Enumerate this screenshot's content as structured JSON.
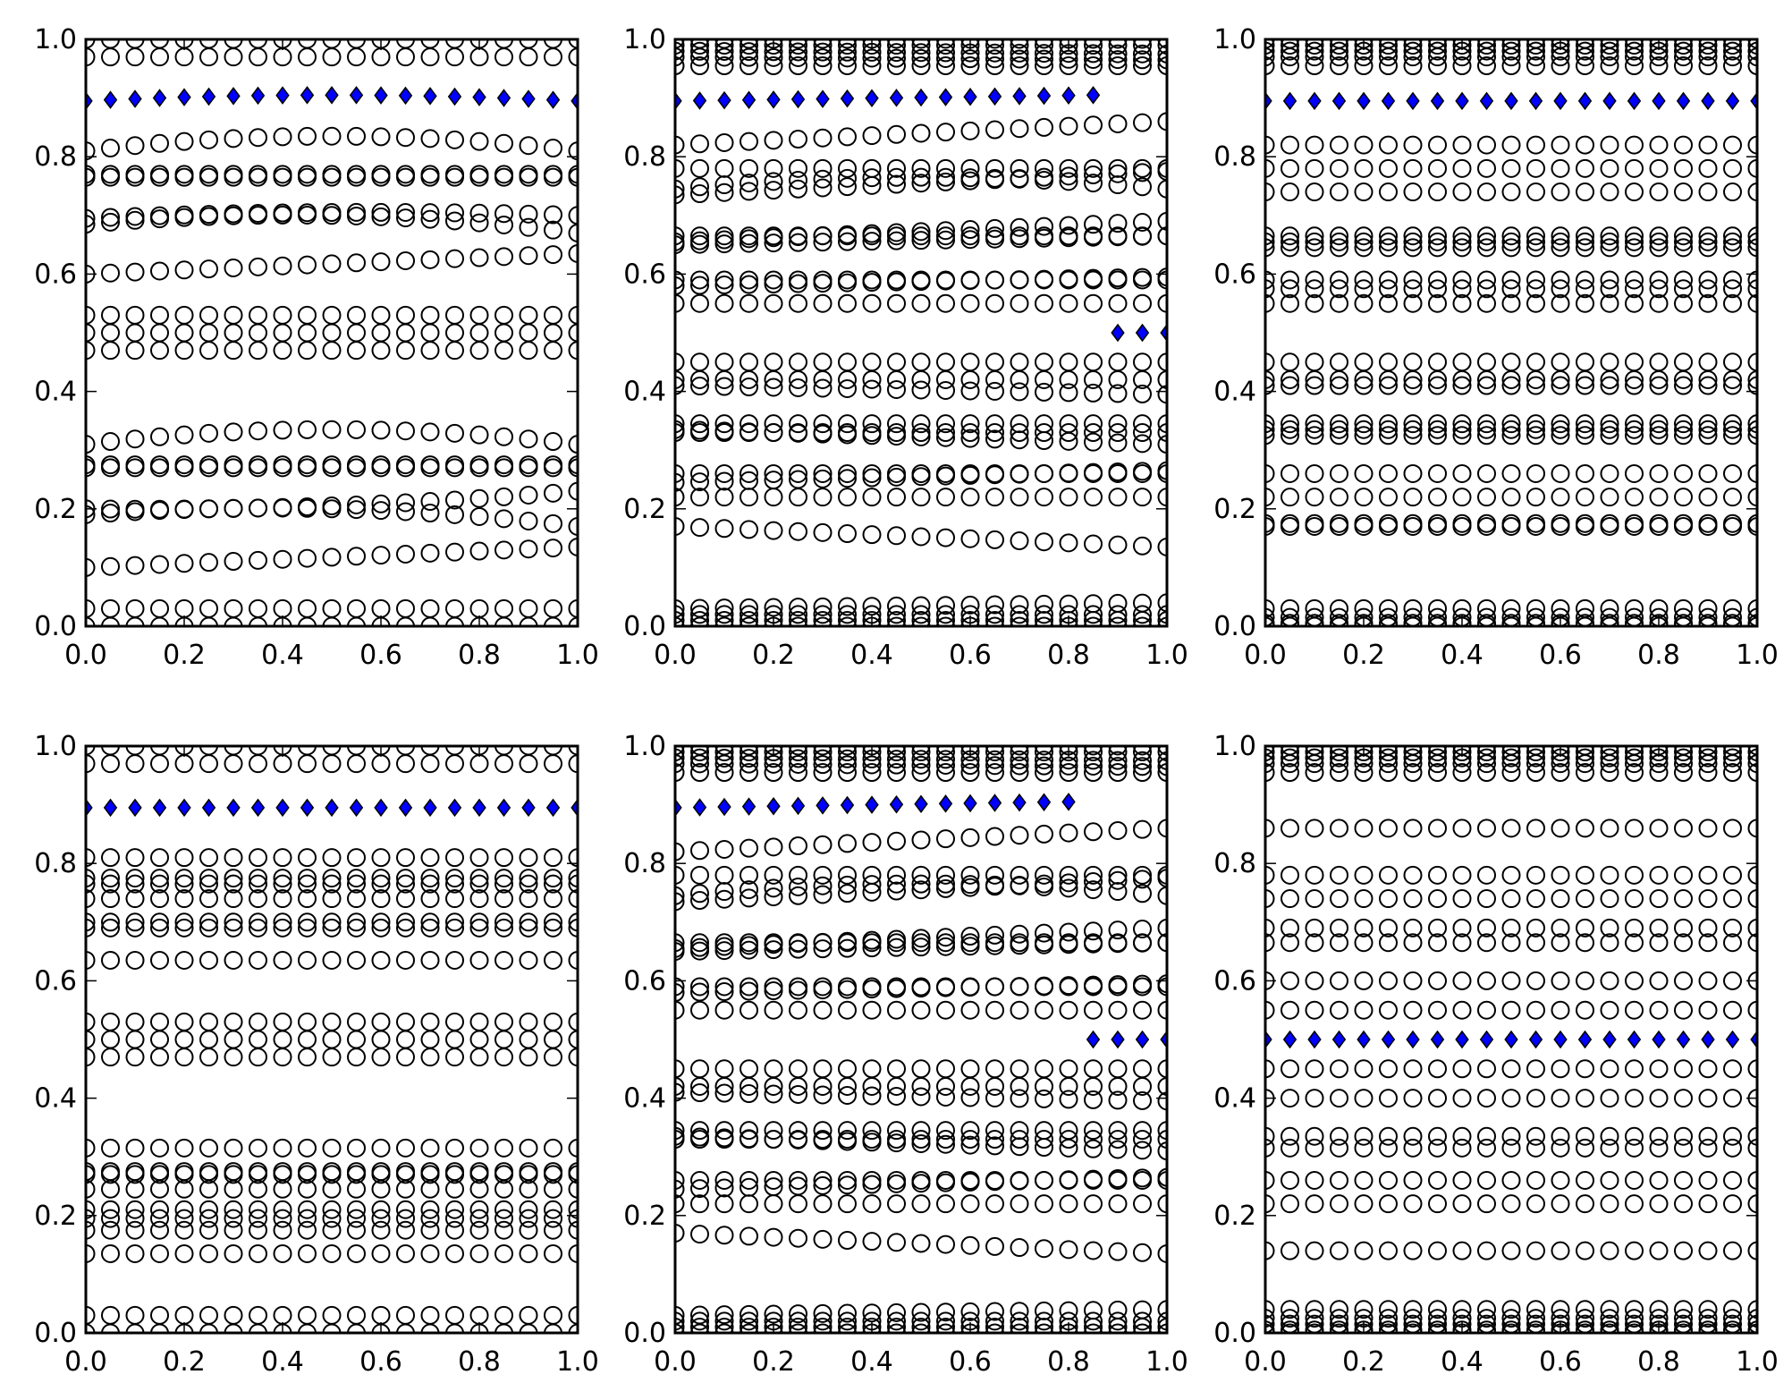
{
  "figure": {
    "axis_color": "#000000",
    "open_marker_color": "#000000",
    "highlight_color": "#0000ff"
  },
  "chart_data": [
    {
      "type": "scatter",
      "panel": "top-left",
      "xlim": [
        0,
        1
      ],
      "ylim": [
        0,
        1
      ],
      "xticks": [
        "0.0",
        "0.2",
        "0.4",
        "0.6",
        "0.8",
        "1.0"
      ],
      "yticks": [
        "0.0",
        "0.2",
        "0.4",
        "0.6",
        "0.8",
        "1.0"
      ],
      "grid": false,
      "x": [
        0,
        0.05,
        0.1,
        0.15,
        0.2,
        0.25,
        0.3,
        0.35,
        0.4,
        0.45,
        0.5,
        0.55,
        0.6,
        0.65,
        0.7,
        0.75,
        0.8,
        0.85,
        0.9,
        0.95,
        1.0
      ],
      "open_levels": [
        {
          "y": 1.0
        },
        {
          "y": 0.97
        },
        {
          "y_start": 0.81,
          "y_peak": 0.835,
          "y_end": 0.81
        },
        {
          "y": 0.77
        },
        {
          "y": 0.765
        },
        {
          "y_start": 0.695,
          "y_peak": 0.705,
          "y_end": 0.7
        },
        {
          "y_start": 0.685,
          "y_peak": 0.7,
          "y_end": 0.67
        },
        {
          "y_start": 0.6,
          "y_end": 0.635
        },
        {
          "y": 0.53
        },
        {
          "y": 0.5
        },
        {
          "y": 0.47
        },
        {
          "y_start": 0.31,
          "y_peak": 0.335,
          "y_end": 0.31
        },
        {
          "y": 0.275
        },
        {
          "y": 0.27
        },
        {
          "y_start": 0.2,
          "y_peak": 0.205,
          "y_end": 0.23
        },
        {
          "y_start": 0.19,
          "y_peak": 0.2,
          "y_end": 0.17
        },
        {
          "y_start": 0.1,
          "y_end": 0.135
        },
        {
          "y": 0.03
        },
        {
          "y": 0.0
        }
      ],
      "highlight_levels": [
        {
          "x_start": 0.0,
          "x_end": 1.0,
          "y_start": 0.895,
          "y_peak": 0.905,
          "y_end": 0.895
        }
      ]
    },
    {
      "type": "scatter",
      "panel": "top-center",
      "xlim": [
        0,
        1
      ],
      "ylim": [
        0,
        1
      ],
      "xticks": [
        "0.0",
        "0.2",
        "0.4",
        "0.6",
        "0.8",
        "1.0"
      ],
      "yticks": [
        "0.0",
        "0.2",
        "0.4",
        "0.6",
        "0.8",
        "1.0"
      ],
      "grid": false,
      "x": [
        0,
        0.05,
        0.1,
        0.15,
        0.2,
        0.25,
        0.3,
        0.35,
        0.4,
        0.45,
        0.5,
        0.55,
        0.6,
        0.65,
        0.7,
        0.75,
        0.8,
        0.85,
        0.9,
        0.95,
        1.0
      ],
      "open_levels": [
        {
          "y": 1.0
        },
        {
          "y": 0.99
        },
        {
          "y_start": 0.98,
          "y_end": 0.975
        },
        {
          "y_start": 0.97,
          "y_end": 0.965
        },
        {
          "y": 0.955
        },
        {
          "y_start": 0.82,
          "y_end": 0.86
        },
        {
          "y": 0.78
        },
        {
          "y_start": 0.745,
          "y_peak": 0.765,
          "y_end": 0.745
        },
        {
          "y_start": 0.735,
          "y_end": 0.775
        },
        {
          "y": 0.665
        },
        {
          "y_start": 0.655,
          "y_end": 0.69
        },
        {
          "y_start": 0.65,
          "y_end": 0.665
        },
        {
          "y": 0.59
        },
        {
          "y_start": 0.58,
          "y_end": 0.595
        },
        {
          "y": 0.55
        },
        {
          "y": 0.45
        },
        {
          "y": 0.42
        },
        {
          "y_start": 0.41,
          "y_end": 0.395
        },
        {
          "y": 0.345
        },
        {
          "y_start": 0.335,
          "y_end": 0.31
        },
        {
          "y_start": 0.33,
          "y_end": 0.33
        },
        {
          "y_start": 0.26,
          "y_end": 0.26
        },
        {
          "y_start": 0.245,
          "y_end": 0.265
        },
        {
          "y_start": 0.22,
          "y_end": 0.22
        },
        {
          "y_start": 0.17,
          "y_end": 0.135
        },
        {
          "y_start": 0.03,
          "y_end": 0.04
        },
        {
          "y": 0.02
        },
        {
          "y": 0.01
        },
        {
          "y": 0.0
        }
      ],
      "highlight_levels": [
        {
          "x_start": 0.0,
          "x_end": 0.85,
          "y_start": 0.895,
          "y_end": 0.905
        },
        {
          "x_start": 0.9,
          "x_end": 1.0,
          "y_start": 0.5,
          "y_end": 0.5
        }
      ]
    },
    {
      "type": "scatter",
      "panel": "top-right",
      "xlim": [
        0,
        1
      ],
      "ylim": [
        0,
        1
      ],
      "xticks": [
        "0.0",
        "0.2",
        "0.4",
        "0.6",
        "0.8",
        "1.0"
      ],
      "yticks": [
        "0.0",
        "0.2",
        "0.4",
        "0.6",
        "0.8",
        "1.0"
      ],
      "grid": false,
      "x": [
        0,
        0.05,
        0.1,
        0.15,
        0.2,
        0.25,
        0.3,
        0.35,
        0.4,
        0.45,
        0.5,
        0.55,
        0.6,
        0.65,
        0.7,
        0.75,
        0.8,
        0.85,
        0.9,
        0.95,
        1.0
      ],
      "open_levels": [
        {
          "y": 1.0
        },
        {
          "y": 0.99
        },
        {
          "y": 0.98
        },
        {
          "y": 0.97
        },
        {
          "y": 0.955
        },
        {
          "y": 0.82
        },
        {
          "y": 0.78
        },
        {
          "y": 0.74
        },
        {
          "y": 0.665
        },
        {
          "y": 0.655
        },
        {
          "y": 0.645
        },
        {
          "y": 0.59
        },
        {
          "y": 0.575
        },
        {
          "y": 0.55
        },
        {
          "y": 0.45
        },
        {
          "y": 0.42
        },
        {
          "y": 0.41
        },
        {
          "y": 0.345
        },
        {
          "y": 0.335
        },
        {
          "y": 0.325
        },
        {
          "y": 0.26
        },
        {
          "y": 0.22
        },
        {
          "y": 0.175
        },
        {
          "y": 0.17
        },
        {
          "y": 0.03
        },
        {
          "y": 0.015
        },
        {
          "y": 0.005
        },
        {
          "y": 0.0
        }
      ],
      "highlight_levels": [
        {
          "x_start": 0.0,
          "x_end": 1.0,
          "y_start": 0.895,
          "y_end": 0.895
        }
      ]
    },
    {
      "type": "scatter",
      "panel": "bottom-left",
      "xlim": [
        0,
        1
      ],
      "ylim": [
        0,
        1
      ],
      "xticks": [
        "0.0",
        "0.2",
        "0.4",
        "0.6",
        "0.8",
        "1.0"
      ],
      "yticks": [
        "0.0",
        "0.2",
        "0.4",
        "0.6",
        "0.8",
        "1.0"
      ],
      "grid": false,
      "x": [
        0,
        0.05,
        0.1,
        0.15,
        0.2,
        0.25,
        0.3,
        0.35,
        0.4,
        0.45,
        0.5,
        0.55,
        0.6,
        0.65,
        0.7,
        0.75,
        0.8,
        0.85,
        0.9,
        0.95,
        1.0
      ],
      "open_levels": [
        {
          "y": 1.0
        },
        {
          "y": 0.97
        },
        {
          "y": 0.81
        },
        {
          "y": 0.775
        },
        {
          "y": 0.765
        },
        {
          "y": 0.74
        },
        {
          "y": 0.7
        },
        {
          "y": 0.69
        },
        {
          "y": 0.635
        },
        {
          "y": 0.53
        },
        {
          "y": 0.5
        },
        {
          "y": 0.47
        },
        {
          "y": 0.315
        },
        {
          "y": 0.275
        },
        {
          "y": 0.27
        },
        {
          "y": 0.245
        },
        {
          "y": 0.21
        },
        {
          "y": 0.195
        },
        {
          "y": 0.175
        },
        {
          "y": 0.135
        },
        {
          "y": 0.03
        },
        {
          "y": 0.0
        }
      ],
      "highlight_levels": [
        {
          "x_start": 0.0,
          "x_end": 1.0,
          "y_start": 0.895,
          "y_end": 0.895
        }
      ]
    },
    {
      "type": "scatter",
      "panel": "bottom-center",
      "xlim": [
        0,
        1
      ],
      "ylim": [
        0,
        1
      ],
      "xticks": [
        "0.0",
        "0.2",
        "0.4",
        "0.6",
        "0.8",
        "1.0"
      ],
      "yticks": [
        "0.0",
        "0.2",
        "0.4",
        "0.6",
        "0.8",
        "1.0"
      ],
      "grid": false,
      "x": [
        0,
        0.05,
        0.1,
        0.15,
        0.2,
        0.25,
        0.3,
        0.35,
        0.4,
        0.45,
        0.5,
        0.55,
        0.6,
        0.65,
        0.7,
        0.75,
        0.8,
        0.85,
        0.9,
        0.95,
        1.0
      ],
      "open_levels": [
        {
          "y": 1.0
        },
        {
          "y": 0.99
        },
        {
          "y_start": 0.98,
          "y_end": 0.975
        },
        {
          "y_start": 0.97,
          "y_end": 0.965
        },
        {
          "y": 0.955
        },
        {
          "y_start": 0.82,
          "y_end": 0.86
        },
        {
          "y": 0.78
        },
        {
          "y_start": 0.745,
          "y_peak": 0.765,
          "y_end": 0.745
        },
        {
          "y_start": 0.735,
          "y_end": 0.775
        },
        {
          "y": 0.665
        },
        {
          "y_start": 0.655,
          "y_end": 0.69
        },
        {
          "y_start": 0.65,
          "y_end": 0.665
        },
        {
          "y": 0.59
        },
        {
          "y_start": 0.58,
          "y_end": 0.595
        },
        {
          "y": 0.55
        },
        {
          "y": 0.45
        },
        {
          "y": 0.42
        },
        {
          "y_start": 0.41,
          "y_end": 0.395
        },
        {
          "y": 0.345
        },
        {
          "y_start": 0.335,
          "y_end": 0.31
        },
        {
          "y_start": 0.33,
          "y_end": 0.33
        },
        {
          "y_start": 0.26,
          "y_end": 0.26
        },
        {
          "y_start": 0.245,
          "y_end": 0.265
        },
        {
          "y_start": 0.22,
          "y_end": 0.22
        },
        {
          "y_start": 0.17,
          "y_end": 0.135
        },
        {
          "y_start": 0.03,
          "y_end": 0.04
        },
        {
          "y": 0.02
        },
        {
          "y": 0.01
        },
        {
          "y": 0.0
        }
      ],
      "highlight_levels": [
        {
          "x_start": 0.0,
          "x_end": 0.8,
          "y_start": 0.895,
          "y_end": 0.905
        },
        {
          "x_start": 0.85,
          "x_end": 1.0,
          "y_start": 0.5,
          "y_end": 0.5
        }
      ]
    },
    {
      "type": "scatter",
      "panel": "bottom-right",
      "xlim": [
        0,
        1
      ],
      "ylim": [
        0,
        1
      ],
      "xticks": [
        "0.0",
        "0.2",
        "0.4",
        "0.6",
        "0.8",
        "1.0"
      ],
      "yticks": [
        "0.0",
        "0.2",
        "0.4",
        "0.6",
        "0.8",
        "1.0"
      ],
      "grid": false,
      "x": [
        0,
        0.05,
        0.1,
        0.15,
        0.2,
        0.25,
        0.3,
        0.35,
        0.4,
        0.45,
        0.5,
        0.55,
        0.6,
        0.65,
        0.7,
        0.75,
        0.8,
        0.85,
        0.9,
        0.95,
        1.0
      ],
      "open_levels": [
        {
          "y": 1.0
        },
        {
          "y": 0.99
        },
        {
          "y": 0.98
        },
        {
          "y": 0.97
        },
        {
          "y": 0.955
        },
        {
          "y": 0.86
        },
        {
          "y": 0.78
        },
        {
          "y": 0.74
        },
        {
          "y": 0.69
        },
        {
          "y": 0.665
        },
        {
          "y": 0.6
        },
        {
          "y": 0.55
        },
        {
          "y": 0.45
        },
        {
          "y": 0.4
        },
        {
          "y": 0.335
        },
        {
          "y": 0.315
        },
        {
          "y": 0.26
        },
        {
          "y": 0.22
        },
        {
          "y": 0.14
        },
        {
          "y": 0.04
        },
        {
          "y": 0.025
        },
        {
          "y": 0.015
        },
        {
          "y": 0.005
        },
        {
          "y": 0.0
        }
      ],
      "highlight_levels": [
        {
          "x_start": 0.0,
          "x_end": 1.0,
          "y_start": 0.5,
          "y_end": 0.5
        }
      ]
    }
  ]
}
